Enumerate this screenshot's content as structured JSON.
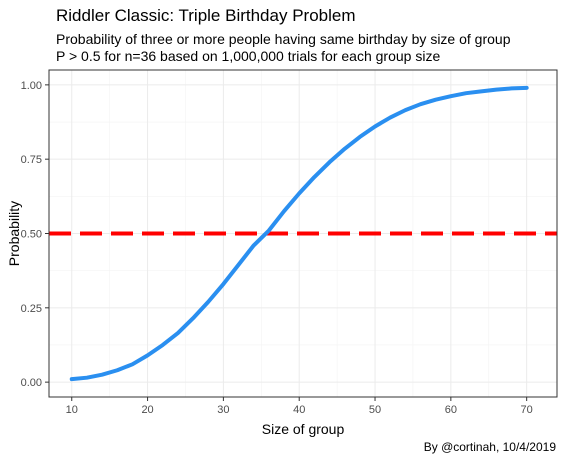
{
  "chart_data": {
    "type": "line",
    "title": "Riddler Classic: Triple Birthday Problem",
    "subtitle_lines": [
      "Probability of three or more people having same birthday by size of group",
      "P > 0.5 for n=36 based on 1,000,000 trials for each group size"
    ],
    "caption": "By @cortinah, 10/4/2019",
    "xlabel": "Size of group",
    "ylabel": "Probability",
    "xlim": [
      7,
      74
    ],
    "ylim": [
      -0.05,
      1.05
    ],
    "x_ticks": [
      10,
      20,
      30,
      40,
      50,
      60,
      70
    ],
    "y_ticks": [
      0.0,
      0.25,
      0.5,
      0.75,
      1.0
    ],
    "y_tick_labels": [
      "0.00",
      "0.25",
      "0.50",
      "0.75",
      "1.00"
    ],
    "grid": true,
    "colors": {
      "curve": "#2a8ff0",
      "threshold": "#ff0000",
      "panel_border": "#333333",
      "grid": "#ebebeb"
    },
    "threshold_y": 0.5,
    "series": [
      {
        "x": [
          10,
          12,
          14,
          16,
          18,
          20,
          22,
          24,
          26,
          28,
          30,
          32,
          34,
          36,
          38,
          40,
          42,
          44,
          46,
          48,
          50,
          52,
          54,
          56,
          58,
          60,
          62,
          64,
          66,
          68,
          70
        ],
        "values": [
          0.01,
          0.015,
          0.025,
          0.04,
          0.06,
          0.09,
          0.125,
          0.165,
          0.215,
          0.27,
          0.33,
          0.395,
          0.46,
          0.51,
          0.575,
          0.635,
          0.69,
          0.74,
          0.785,
          0.825,
          0.86,
          0.89,
          0.915,
          0.935,
          0.95,
          0.962,
          0.972,
          0.978,
          0.984,
          0.988,
          0.99
        ]
      }
    ]
  }
}
